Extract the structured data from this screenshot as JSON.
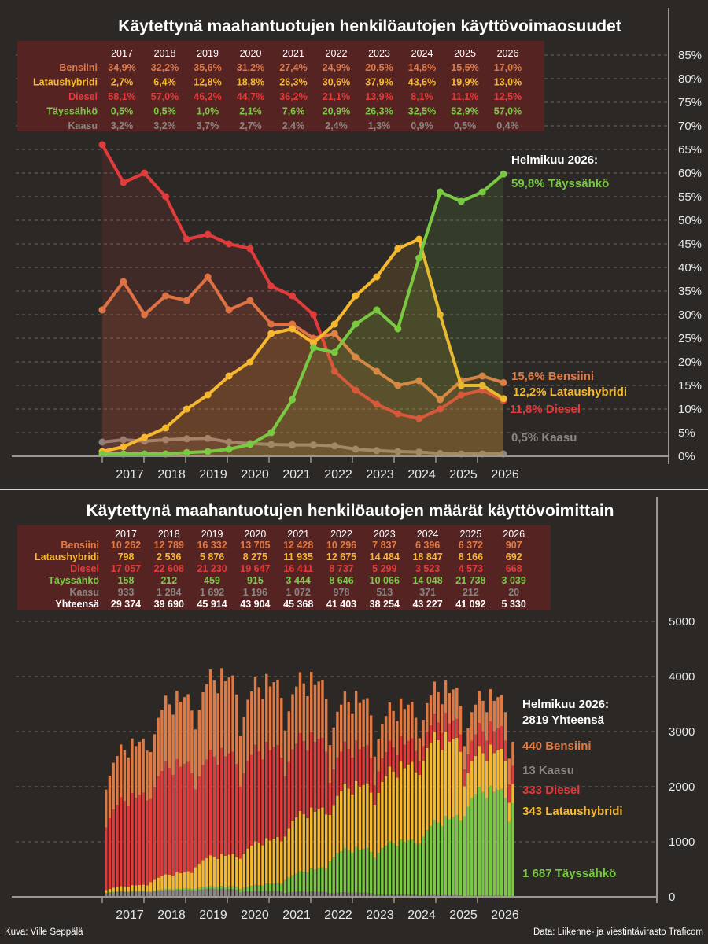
{
  "colors": {
    "Bensiini": "#e07a45",
    "Lataushybridi": "#f5b82e",
    "Diesel": "#e23b3b",
    "Täyssähkö": "#7ac943",
    "Kaasu": "#8a8580",
    "Yhteensä": "#ffffff",
    "background": "#2b2825",
    "table_bg": "#5a2323"
  },
  "top": {
    "title": "Käytettynä maahantuotujen henkilöautojen käyttövoimaosuudet",
    "years": [
      "2017",
      "2018",
      "2019",
      "2020",
      "2021",
      "2022",
      "2023",
      "2024",
      "2025",
      "2026"
    ],
    "table_rows": [
      {
        "name": "Bensiini",
        "values": [
          "34,9%",
          "32,2%",
          "35,6%",
          "31,2%",
          "27,4%",
          "24,9%",
          "20,5%",
          "14,8%",
          "15,5%",
          "17,0%"
        ]
      },
      {
        "name": "Lataushybridi",
        "values": [
          "2,7%",
          "6,4%",
          "12,8%",
          "18,8%",
          "26,3%",
          "30,6%",
          "37,9%",
          "43,6%",
          "19,9%",
          "13,0%"
        ]
      },
      {
        "name": "Diesel",
        "values": [
          "58,1%",
          "57,0%",
          "46,2%",
          "44,7%",
          "36,2%",
          "21,1%",
          "13,9%",
          "8,1%",
          "11,1%",
          "12,5%"
        ]
      },
      {
        "name": "Täyssähkö",
        "values": [
          "0,5%",
          "0,5%",
          "1,0%",
          "2,1%",
          "7,6%",
          "20,9%",
          "26,3%",
          "32,5%",
          "52,9%",
          "57,0%"
        ]
      },
      {
        "name": "Kaasu",
        "values": [
          "3,2%",
          "3,2%",
          "3,7%",
          "2,7%",
          "2,4%",
          "2,4%",
          "1,3%",
          "0,9%",
          "0,5%",
          "0,4%"
        ]
      }
    ],
    "annotation_header": "Helmikuu 2026:",
    "annotations": [
      {
        "series": "Täyssähkö",
        "text": "59,8% Täyssähkö",
        "value": 59.8
      },
      {
        "series": "Bensiini",
        "text": "15,6% Bensiini",
        "value": 15.6
      },
      {
        "series": "Lataushybridi",
        "text": "12,2% Lataushybridi",
        "value": 12.2
      },
      {
        "series": "Diesel",
        "text": "11,8% Diesel",
        "value": 11.8
      },
      {
        "series": "Kaasu",
        "text": "0,5% Kaasu",
        "value": 0.5
      }
    ]
  },
  "bottom": {
    "title": "Käytettynä maahantuotujen henkilöautojen määrät käyttövoimittain",
    "years": [
      "2017",
      "2018",
      "2019",
      "2020",
      "2021",
      "2022",
      "2023",
      "2024",
      "2025",
      "2026"
    ],
    "table_rows": [
      {
        "name": "Bensiini",
        "values": [
          "10 262",
          "12 789",
          "16 332",
          "13 705",
          "12 428",
          "10 296",
          "7 837",
          "6 396",
          "6 372",
          "907"
        ]
      },
      {
        "name": "Lataushybridi",
        "values": [
          "798",
          "2 536",
          "5 876",
          "8 275",
          "11 935",
          "12 675",
          "14 484",
          "18 847",
          "8 166",
          "692"
        ]
      },
      {
        "name": "Diesel",
        "values": [
          "17 057",
          "22 608",
          "21 230",
          "19 647",
          "16 411",
          "8 737",
          "5 299",
          "3 523",
          "4 573",
          "668"
        ]
      },
      {
        "name": "Täyssähkö",
        "values": [
          "158",
          "212",
          "459",
          "915",
          "3 444",
          "8 646",
          "10 066",
          "14 048",
          "21 738",
          "3 039"
        ]
      },
      {
        "name": "Kaasu",
        "values": [
          "933",
          "1 284",
          "1 692",
          "1 196",
          "1 072",
          "978",
          "513",
          "371",
          "212",
          "20"
        ]
      },
      {
        "name": "Yhteensä",
        "values": [
          "29 374",
          "39 690",
          "45 914",
          "43 904",
          "45 368",
          "41 403",
          "38 254",
          "43 227",
          "41 092",
          "5 330"
        ]
      }
    ],
    "annotation_header": "Helmikuu 2026:",
    "annotation_total": "2819 Yhteensä",
    "annotations": [
      {
        "series": "Bensiini",
        "text": "440 Bensiini",
        "value": 440
      },
      {
        "series": "Kaasu",
        "text": "13 Kaasu",
        "value": 13
      },
      {
        "series": "Diesel",
        "text": "333 Diesel",
        "value": 333
      },
      {
        "series": "Lataushybridi",
        "text": "343 Lataushybridi",
        "value": 343
      },
      {
        "series": "Täyssähkö",
        "text": "1 687 Täyssähkö",
        "value": 1687
      }
    ]
  },
  "credit_left": "Kuva: Ville Seppälä",
  "credit_right": "Data: Liikenne- ja viestintävirasto Traficom",
  "chart_data": [
    {
      "type": "line",
      "title": "Käytettynä maahantuotujen henkilöautojen käyttövoimaosuudet",
      "x_label_years": [
        "2017",
        "2018",
        "2019",
        "2020",
        "2021",
        "2022",
        "2023",
        "2024",
        "2025",
        "2026"
      ],
      "ylim": [
        0,
        85
      ],
      "y_ticks": [
        "0%",
        "5%",
        "10%",
        "15%",
        "20%",
        "25%",
        "30%",
        "35%",
        "40%",
        "45%",
        "50%",
        "55%",
        "60%",
        "65%",
        "70%",
        "75%",
        "80%",
        "85%"
      ],
      "x": [
        "2016-12",
        "2017-06",
        "2017-12",
        "2018-06",
        "2018-12",
        "2019-06",
        "2019-12",
        "2020-06",
        "2020-12",
        "2021-06",
        "2021-12",
        "2022-06",
        "2022-12",
        "2023-06",
        "2023-12",
        "2024-06",
        "2024-12",
        "2025-06",
        "2025-12",
        "2026-02"
      ],
      "series": [
        {
          "name": "Bensiini",
          "values": [
            31,
            37,
            30,
            34,
            33,
            38,
            31,
            33,
            28,
            28,
            25,
            26,
            21,
            18,
            15,
            16,
            12,
            16,
            17,
            15.6
          ]
        },
        {
          "name": "Lataushybridi",
          "values": [
            1,
            2,
            4,
            6,
            10,
            13,
            17,
            20,
            26,
            27,
            24,
            28,
            34,
            38,
            44,
            46,
            30,
            15,
            15,
            12.2
          ]
        },
        {
          "name": "Diesel",
          "values": [
            66,
            58,
            60,
            55,
            46,
            47,
            45,
            44,
            36,
            34,
            30,
            18,
            14,
            11,
            9,
            8,
            10,
            13,
            14,
            11.8
          ]
        },
        {
          "name": "Täyssähkö",
          "values": [
            0.5,
            0.5,
            0.5,
            0.5,
            0.8,
            1,
            1.5,
            2.5,
            5,
            12,
            23,
            22,
            28,
            31,
            27,
            42,
            56,
            54,
            56,
            59.8
          ]
        },
        {
          "name": "Kaasu",
          "values": [
            3,
            3.5,
            3.2,
            3.5,
            3.7,
            3.8,
            3,
            2.7,
            2.5,
            2.4,
            2.4,
            2.2,
            1.5,
            1.2,
            1,
            0.9,
            0.6,
            0.5,
            0.5,
            0.5
          ]
        }
      ]
    },
    {
      "type": "bar",
      "stacked": true,
      "title": "Käytettynä maahantuotujen henkilöautojen määrät käyttövoimittain",
      "x_label_years": [
        "2017",
        "2018",
        "2019",
        "2020",
        "2021",
        "2022",
        "2023",
        "2024",
        "2025",
        "2026"
      ],
      "ylim": [
        0,
        5000
      ],
      "y_ticks": [
        "0",
        "1000",
        "2000",
        "3000",
        "4000",
        "5000"
      ],
      "stack_order_bottom_to_top": [
        "Kaasu",
        "Täyssähkö",
        "Lataushybridi",
        "Diesel",
        "Bensiini"
      ],
      "annual_totals": {
        "Bensiini": [
          10262,
          12789,
          16332,
          13705,
          12428,
          10296,
          7837,
          6396,
          6372,
          907
        ],
        "Lataushybridi": [
          798,
          2536,
          5876,
          8275,
          11935,
          12675,
          14484,
          18847,
          8166,
          692
        ],
        "Diesel": [
          17057,
          22608,
          21230,
          19647,
          16411,
          8737,
          5299,
          3523,
          4573,
          668
        ],
        "Täyssähkö": [
          158,
          212,
          459,
          915,
          3444,
          8646,
          10066,
          14048,
          21738,
          3039
        ],
        "Kaasu": [
          933,
          1284,
          1692,
          1196,
          1072,
          978,
          513,
          371,
          212,
          20
        ]
      },
      "latest_month": {
        "Bensiini": 440,
        "Kaasu": 13,
        "Diesel": 333,
        "Lataushybridi": 343,
        "Täyssähkö": 1687,
        "Yhteensä": 2819
      }
    }
  ]
}
